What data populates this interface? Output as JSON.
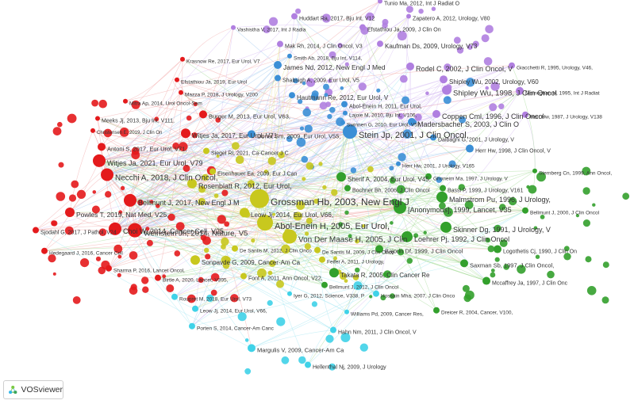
{
  "app": {
    "name": "VOSviewer"
  },
  "colors": {
    "red": "#e41a1c",
    "green": "#33a02c",
    "blue": "#3b8fd6",
    "yellow": "#c8c81e",
    "purple": "#b07fe0",
    "cyan": "#3fd2e8",
    "edge_red": "#f0a0a0",
    "edge_green": "#9fd98f",
    "edge_blue": "#9cc7ee",
    "edge_yellow": "#e3e08c",
    "edge_purple": "#d3b8f3",
    "edge_cyan": "#9fe6f2"
  },
  "nodes": [
    {
      "label": "Tunio Ma, 2012, Int J Radiat O",
      "cluster": "purple"
    },
    {
      "label": "Huddart Ra, 2017, Bju Int, V12",
      "cluster": "purple"
    },
    {
      "label": "Zapatero A, 2012, Urology, V80",
      "cluster": "purple"
    },
    {
      "label": "Vashistha V, 2017, Int J Radia",
      "cluster": "purple"
    },
    {
      "label": "Efstathiou Ja, 2009, J Clin On",
      "cluster": "purple"
    },
    {
      "label": "Mak Rh, 2014, J Clin Oncol, V3",
      "cluster": "purple"
    },
    {
      "label": "Kaufman Ds, 2009, Urology, V73",
      "cluster": "purple"
    },
    {
      "label": "Krasnow Re, 2017, Eur Urol, V7",
      "cluster": "red"
    },
    {
      "label": "Smith Ab, 2018, Bju Int, V114,",
      "cluster": "blue"
    },
    {
      "label": "James Nd, 2012, New Engl J Med",
      "cluster": "blue"
    },
    {
      "label": "Giacchetti R, 1995, Urology, V46,",
      "cluster": "purple"
    },
    {
      "label": "Rodel C, 2002, J Clin Oncol, V",
      "cluster": "purple"
    },
    {
      "label": "Efstathiou Ja, 2019, Eur Urol",
      "cluster": "red"
    },
    {
      "label": "Shabsigh A, 2009, Eur Urol, V5",
      "cluster": "blue"
    },
    {
      "label": "Shipley Wu, 2002, Urology, V60",
      "cluster": "purple"
    },
    {
      "label": "Mameghan H, 1995, Int J Radiat",
      "cluster": "purple"
    },
    {
      "label": "Mazza P, 2018, J Urology, V200",
      "cluster": "red"
    },
    {
      "label": "Hautmann Re, 2012, Eur Urol, V",
      "cluster": "blue"
    },
    {
      "label": "Shipley Wu, 1998, J Clin Oncol",
      "cluster": "purple"
    },
    {
      "label": "Mitra Ap, 2014, Urol Oncol-Sem",
      "cluster": "red"
    },
    {
      "label": "Abol-Enein H, 2011, Eur Urol,",
      "cluster": "blue"
    },
    {
      "label": "Herr Hw, 1987, J Urology, V138",
      "cluster": "purple"
    },
    {
      "label": "Meeks Jj, 2013, Bju Int, V111,",
      "cluster": "red"
    },
    {
      "label": "Burger M, 2013, Eur Urol, V63,",
      "cluster": "red"
    },
    {
      "label": "Lajoie M, 2010, Bju Int, V106,",
      "cluster": "blue"
    },
    {
      "label": "Christensen E, 2019, J Clin On",
      "cluster": "red"
    },
    {
      "label": "Swinnen G, 2010, Eur Urol, V57",
      "cluster": "blue"
    },
    {
      "label": "Madersbacher S, 2003, J Clin O",
      "cluster": "blue"
    },
    {
      "label": "Coppen Cml, 1996, J Clin Oncol",
      "cluster": "purple"
    },
    {
      "label": "Witjes Ja, 2017, Eur Urol, V71",
      "cluster": "red"
    },
    {
      "label": "Stein Jp, 2001, J Clin Oncol,",
      "cluster": "blue"
    },
    {
      "label": "Dalbagni G, 2001, J Urology, V",
      "cluster": "blue"
    },
    {
      "label": "Donat Sm, 2009, Eur Urol, V55,",
      "cluster": "blue"
    },
    {
      "label": "Antoni S, 2017, Eur Urol, V71,",
      "cluster": "red"
    },
    {
      "label": "Siegel Rl, 2021, Ca-Cancer J C",
      "cluster": "yellow"
    },
    {
      "label": "Herr Hw, 1998, J Clin Oncol, V",
      "cluster": "blue"
    },
    {
      "label": "Witjes Ja, 2021, Eur Urol, V79",
      "cluster": "red"
    },
    {
      "label": "Herr Hw, 2001, J Urology, V165",
      "cluster": "blue"
    },
    {
      "label": "Eisenhauer Ea, 2009, Eur J Can",
      "cluster": "yellow"
    },
    {
      "label": "Necchi A, 2018, J Clin Oncol,",
      "cluster": "red"
    },
    {
      "label": "Sherif A, 2004, Eur Urol, V45,",
      "cluster": "green"
    },
    {
      "label": "Ghoneim Ma, 1997, J Urology, V",
      "cluster": "green"
    },
    {
      "label": "Sternberg Cn, 1999, Ann Oncol,",
      "cluster": "green"
    },
    {
      "label": "Rosenblatt R, 2012, Eur Urol,",
      "cluster": "yellow"
    },
    {
      "label": "Bochner Bh, 2006, J Clin Oncol",
      "cluster": "green"
    },
    {
      "label": "Bassi P, 1999, J Urology, V161",
      "cluster": "green"
    },
    {
      "label": "Grossman Hb, 2003, New Engl J",
      "cluster": "yellow"
    },
    {
      "label": "Powles T, 2019, Nat Med, V25,",
      "cluster": "red"
    },
    {
      "label": "Malmstrom Pu, 1996, J Urology,",
      "cluster": "green"
    },
    {
      "label": "Bellmunt J, 2017, New Engl J M",
      "cluster": "red"
    },
    {
      "label": "[Anonymous], 1999, Lancet, V35",
      "cluster": "green"
    },
    {
      "label": "Bellmunt J, 2000, J Clin Oncol",
      "cluster": "green"
    },
    {
      "label": "Leow Jj, 2014, Eur Urol, V66,",
      "cluster": "yellow"
    },
    {
      "label": "Sjodahl G, 2017, J Pathol, V24",
      "cluster": "red"
    },
    {
      "label": "Choi W, 2014, Cancer Cell, V25",
      "cluster": "red"
    },
    {
      "label": "Abol-Enein H, 2005, Eur Urol,",
      "cluster": "yellow"
    },
    {
      "label": "Skinner Dg, 1991, J Urology, V",
      "cluster": "green"
    },
    {
      "label": "Hedegaard J, 2016, Cancer Cell",
      "cluster": "red"
    },
    {
      "label": "Weinstein Jn, 2014, Nature, V5",
      "cluster": "red"
    },
    {
      "label": "Von Der Maase H, 2005, J Clin",
      "cluster": "yellow"
    },
    {
      "label": "Loehrer Pj, 1992, J Clin Oncol",
      "cluster": "green"
    },
    {
      "label": "Bajorin Df, 1999, J Clin Oncol",
      "cluster": "green"
    },
    {
      "label": "Logothetis Cj, 1990, J Clin On",
      "cluster": "green"
    },
    {
      "label": "Sharma P, 2016, Lancet Oncol,",
      "cluster": "red"
    },
    {
      "label": "De Santis M, 2012, J Clin Onco",
      "cluster": "yellow"
    },
    {
      "label": "De Santis M, 2009, J Clin Onco",
      "cluster": "yellow"
    },
    {
      "label": "Feifer A, 2011, J Urology,",
      "cluster": "yellow"
    },
    {
      "label": "Saxman Sb, 1997, J Clin Oncol,",
      "cluster": "green"
    },
    {
      "label": "Birtle A, 2020, Lancet, V395,",
      "cluster": "red"
    },
    {
      "label": "Sonpavde G, 2009, Cancer-Am Ca",
      "cluster": "yellow"
    },
    {
      "label": "Font A, 2011, Ann Oncol, V22,",
      "cluster": "yellow"
    },
    {
      "label": "Takata R, 2005, Clin Cancer Re",
      "cluster": "green"
    },
    {
      "label": "Mccaffrey Ja, 1997, J Clin Onc",
      "cluster": "green"
    },
    {
      "label": "Bellmunt J, 2012, J Clin Oncol",
      "cluster": "green"
    },
    {
      "label": "Rouprét M, 2018, Eur Urol, V73",
      "cluster": "cyan"
    },
    {
      "label": "Iyer G, 2012, Science, V338, P",
      "cluster": "cyan"
    },
    {
      "label": "Hossain Mha, 2007, J Clin Onco",
      "cluster": "cyan"
    },
    {
      "label": "Leow Jj, 2014, Eur Urol, V66,",
      "cluster": "cyan"
    },
    {
      "label": "Williams Pd, 2009, Cancer Res,",
      "cluster": "cyan"
    },
    {
      "label": "Dreicer R, 2004, Cancer, V100,",
      "cluster": "green"
    },
    {
      "label": "Porten S, 2014, Cancer-Am Canc",
      "cluster": "cyan"
    },
    {
      "label": "Hahn Nm, 2011, J Clin Oncol, V",
      "cluster": "cyan"
    },
    {
      "label": "Margulis V, 2009, Cancer-Am Ca",
      "cluster": "cyan"
    },
    {
      "label": "Hellenthal Nj, 2009, J Urology",
      "cluster": "cyan"
    }
  ]
}
